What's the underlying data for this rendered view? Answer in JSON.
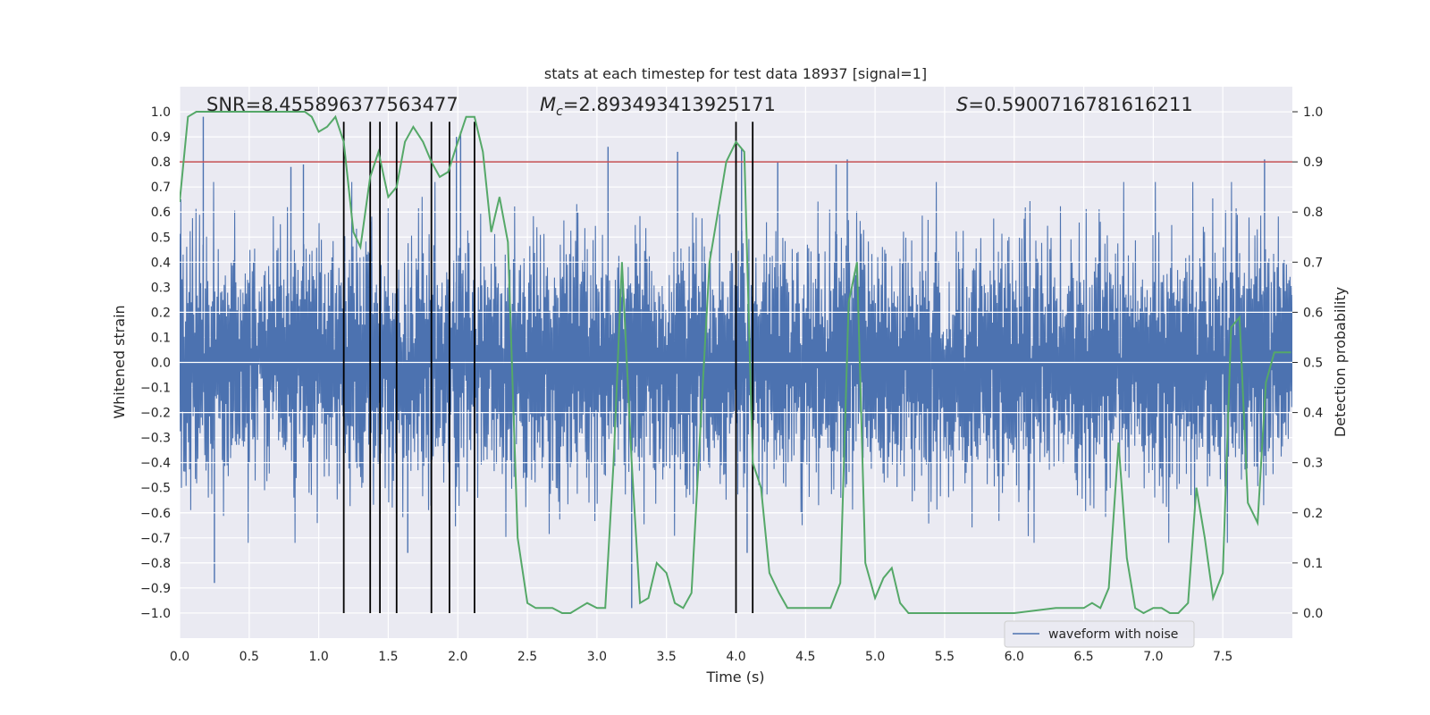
{
  "chart_data": {
    "type": "line",
    "title": "stats at each timestep for test data 18937 [signal=1]",
    "xlabel": "Time (s)",
    "ylabel": "Whitened strain",
    "y2label": "Detection probability",
    "xlim": [
      0.0,
      8.0
    ],
    "ylim": [
      -1.1,
      1.1
    ],
    "y2lim": [
      -0.05,
      1.05
    ],
    "x_ticks": [
      0.0,
      0.5,
      1.0,
      1.5,
      2.0,
      2.5,
      3.0,
      3.5,
      4.0,
      4.5,
      5.0,
      5.5,
      6.0,
      6.5,
      7.0,
      7.5
    ],
    "x_tick_labels": [
      "0.0",
      "0.5",
      "1.0",
      "1.5",
      "2.0",
      "2.5",
      "3.0",
      "3.5",
      "4.0",
      "4.5",
      "5.0",
      "5.5",
      "6.0",
      "6.5",
      "7.0",
      "7.5"
    ],
    "y_ticks": [
      -1.0,
      -0.9,
      -0.8,
      -0.7,
      -0.6,
      -0.5,
      -0.4,
      -0.3,
      -0.2,
      -0.1,
      0.0,
      0.1,
      0.2,
      0.3,
      0.4,
      0.5,
      0.6,
      0.7,
      0.8,
      0.9,
      1.0
    ],
    "y_tick_labels": [
      "−1.0",
      "−0.9",
      "−0.8",
      "−0.7",
      "−0.6",
      "−0.5",
      "−0.4",
      "−0.3",
      "−0.2",
      "−0.1",
      "0.0",
      "0.1",
      "0.2",
      "0.3",
      "0.4",
      "0.5",
      "0.6",
      "0.7",
      "0.8",
      "0.9",
      "1.0"
    ],
    "y2_ticks": [
      0.0,
      0.1,
      0.2,
      0.3,
      0.4,
      0.5,
      0.6,
      0.7,
      0.8,
      0.9,
      1.0
    ],
    "y2_tick_labels": [
      "0.0",
      "0.1",
      "0.2",
      "0.3",
      "0.4",
      "0.5",
      "0.6",
      "0.7",
      "0.8",
      "0.9",
      "1.0"
    ],
    "annotations": {
      "snr": "SNR=8.455896377563477",
      "mc_symbol": "M",
      "mc_sub": "c",
      "mc_value": "=2.893493413925171",
      "s_symbol": "S",
      "s_value": "=0.5900716781616211"
    },
    "legend": {
      "placement": "lower-right",
      "label": "waveform with noise"
    },
    "threshold": 0.9,
    "vertical_markers": [
      1.18,
      1.37,
      1.44,
      1.56,
      1.81,
      1.94,
      2.12,
      4.0,
      4.12
    ],
    "waveform": {
      "name": "waveform with noise",
      "color": "#4c72b0",
      "duration": 8.0,
      "noise_amplitude": 0.32,
      "spike_times": [
        0.17,
        0.25,
        0.8,
        0.89,
        1.64,
        1.99,
        2.02,
        3.08,
        3.25,
        3.58,
        4.04,
        4.08,
        4.12,
        4.3,
        4.72,
        4.8,
        7.8
      ],
      "spike_values": [
        0.98,
        -0.88,
        0.78,
        0.79,
        -0.76,
        0.9,
        0.92,
        0.86,
        -0.98,
        0.84,
        0.85,
        -0.76,
        0.82,
        0.8,
        0.79,
        0.81,
        0.81
      ]
    },
    "probability": {
      "name": "detection probability",
      "color": "#55a868",
      "x": [
        0.0,
        0.06,
        0.12,
        0.2,
        0.3,
        0.4,
        0.5,
        0.6,
        0.7,
        0.8,
        0.9,
        0.95,
        1.0,
        1.06,
        1.12,
        1.18,
        1.25,
        1.3,
        1.37,
        1.43,
        1.5,
        1.56,
        1.62,
        1.68,
        1.75,
        1.81,
        1.87,
        1.93,
        2.0,
        2.06,
        2.12,
        2.18,
        2.24,
        2.3,
        2.36,
        2.43,
        2.5,
        2.56,
        2.62,
        2.68,
        2.75,
        2.81,
        2.87,
        2.93,
        3.0,
        3.06,
        3.12,
        3.18,
        3.25,
        3.31,
        3.37,
        3.43,
        3.5,
        3.56,
        3.62,
        3.68,
        3.75,
        3.81,
        3.87,
        3.93,
        4.0,
        4.06,
        4.12,
        4.18,
        4.24,
        4.31,
        4.37,
        4.43,
        4.5,
        4.56,
        4.62,
        4.68,
        4.75,
        4.81,
        4.87,
        4.93,
        5.0,
        5.06,
        5.12,
        5.18,
        5.24,
        5.31,
        5.37,
        5.5,
        5.7,
        6.0,
        6.3,
        6.45,
        6.5,
        6.56,
        6.62,
        6.68,
        6.75,
        6.81,
        6.87,
        6.93,
        7.0,
        7.06,
        7.12,
        7.18,
        7.25,
        7.31,
        7.37,
        7.43,
        7.5,
        7.56,
        7.62,
        7.68,
        7.75,
        7.81,
        7.87,
        7.93,
        7.99
      ],
      "y": [
        0.82,
        0.99,
        1.0,
        1.0,
        1.0,
        1.0,
        1.0,
        1.0,
        1.0,
        1.0,
        1.0,
        0.99,
        0.96,
        0.97,
        0.99,
        0.94,
        0.76,
        0.73,
        0.87,
        0.92,
        0.83,
        0.85,
        0.94,
        0.97,
        0.94,
        0.9,
        0.87,
        0.88,
        0.94,
        0.99,
        0.99,
        0.92,
        0.76,
        0.83,
        0.74,
        0.15,
        0.02,
        0.01,
        0.01,
        0.01,
        0.0,
        0.0,
        0.01,
        0.02,
        0.01,
        0.01,
        0.3,
        0.7,
        0.3,
        0.02,
        0.03,
        0.1,
        0.08,
        0.02,
        0.01,
        0.04,
        0.4,
        0.7,
        0.8,
        0.9,
        0.94,
        0.92,
        0.3,
        0.25,
        0.08,
        0.04,
        0.01,
        0.01,
        0.01,
        0.01,
        0.01,
        0.01,
        0.06,
        0.62,
        0.7,
        0.1,
        0.03,
        0.07,
        0.09,
        0.02,
        0.0,
        0.0,
        0.0,
        0.0,
        0.0,
        0.0,
        0.01,
        0.01,
        0.01,
        0.02,
        0.01,
        0.05,
        0.34,
        0.11,
        0.01,
        0.0,
        0.01,
        0.01,
        0.0,
        0.0,
        0.02,
        0.25,
        0.15,
        0.03,
        0.08,
        0.57,
        0.59,
        0.22,
        0.18,
        0.46,
        0.52,
        0.52,
        0.52
      ]
    }
  }
}
